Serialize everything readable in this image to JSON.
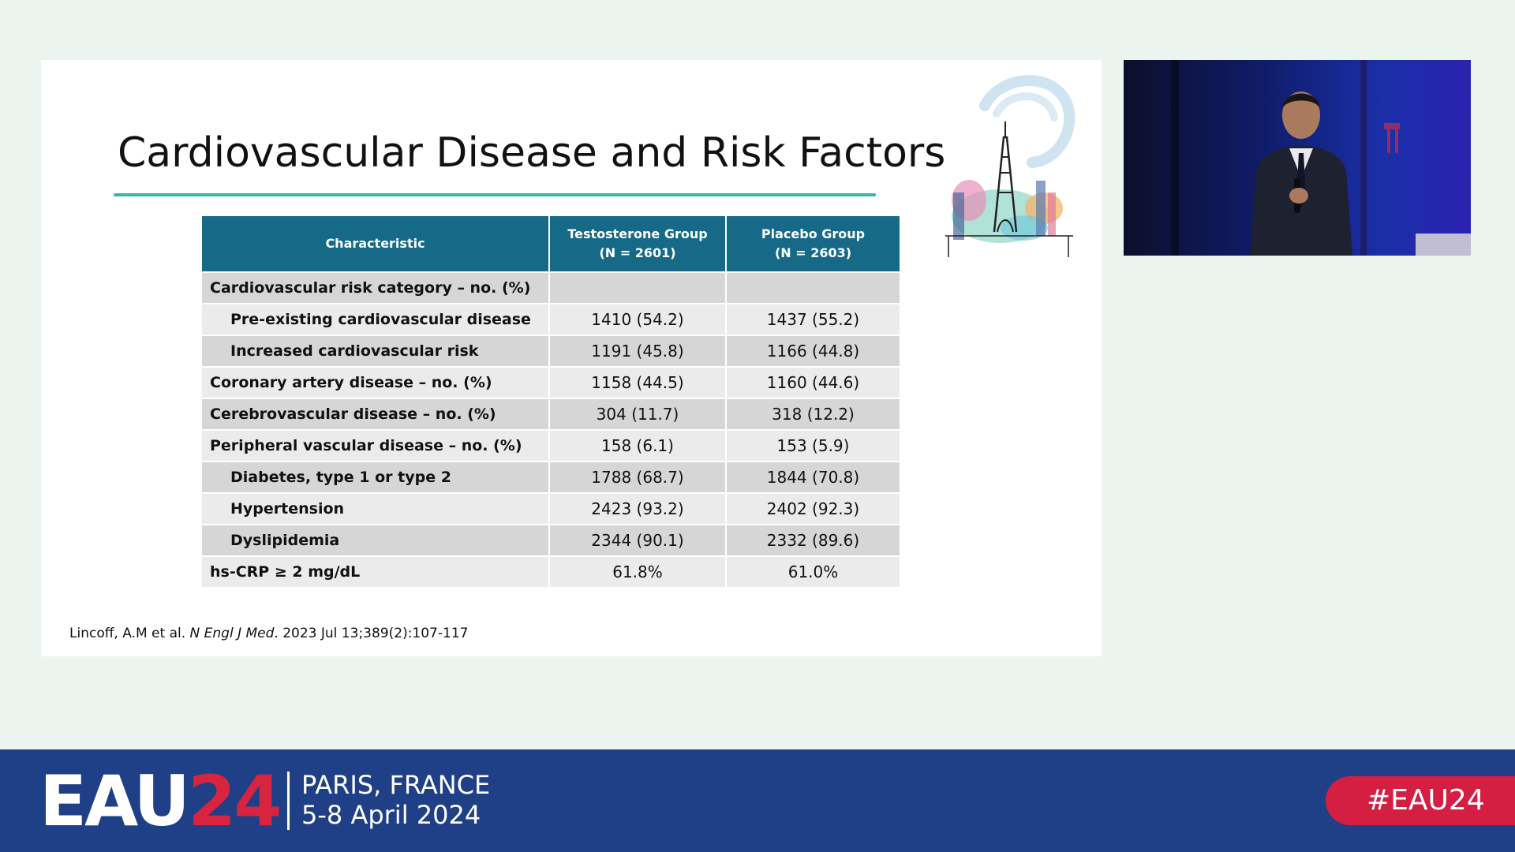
{
  "slide": {
    "title": "Cardiovascular Disease and Risk Factors",
    "citation": {
      "authors": "Lincoff, A.M et al.",
      "journal": "N Engl J Med",
      "details": ". 2023 Jul 13;389(2):107-117"
    }
  },
  "table": {
    "headers": {
      "characteristic": "Characteristic",
      "testosterone_line1": "Testosterone Group",
      "testosterone_line2": "(N = 2601)",
      "placebo_line1": "Placebo Group",
      "placebo_line2": "(N = 2603)"
    },
    "rows": [
      {
        "label": "Cardiovascular risk category – no. (%)",
        "testosterone": "",
        "placebo": ""
      },
      {
        "label": "Pre-existing cardiovascular disease",
        "testosterone": "1410 (54.2)",
        "placebo": "1437 (55.2)"
      },
      {
        "label": "Increased cardiovascular risk",
        "testosterone": "1191 (45.8)",
        "placebo": "1166 (44.8)"
      },
      {
        "label": "Coronary artery disease – no. (%)",
        "testosterone": "1158 (44.5)",
        "placebo": "1160 (44.6)"
      },
      {
        "label": "Cerebrovascular disease – no. (%)",
        "testosterone": "304 (11.7)",
        "placebo": "318 (12.2)"
      },
      {
        "label": "Peripheral vascular disease – no. (%)",
        "testosterone": "158 (6.1)",
        "placebo": "153 (5.9)"
      },
      {
        "label": "Diabetes, type 1 or type 2",
        "testosterone": "1788 (68.7)",
        "placebo": "1844 (70.8)"
      },
      {
        "label": "Hypertension",
        "testosterone": "2423 (93.2)",
        "placebo": "2402 (92.3)"
      },
      {
        "label": "Dyslipidemia",
        "testosterone": "2344 (90.1)",
        "placebo": "2332 (89.6)"
      },
      {
        "label": "hs-CRP ≥ 2 mg/dL",
        "testosterone": "61.8%",
        "placebo": "61.0%"
      }
    ]
  },
  "footer": {
    "logo_text": "EAU",
    "logo_number": "24",
    "location": "PARIS, FRANCE",
    "dates": "5-8 April 2024",
    "hashtag": "#EAU24"
  },
  "colors": {
    "header_blue": "#166a88",
    "accent_teal": "#2fb8b0",
    "footer_navy": "#1f3f87",
    "brand_red": "#d41f43"
  },
  "icons": {
    "slide_art": "paris-eiffel-tower-illustration",
    "video": "speaker-video-feed"
  }
}
